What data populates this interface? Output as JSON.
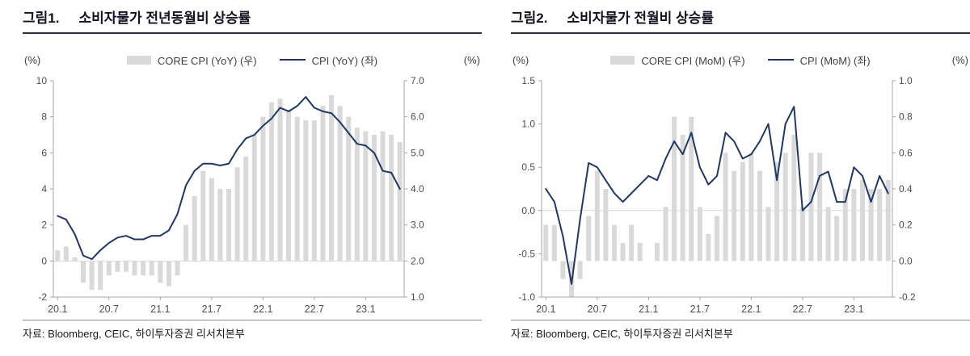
{
  "chart_data": [
    {
      "type": "bar+line combo",
      "figure_label": "그림1.",
      "title": "소비자물가 전년동월비 상승률",
      "source": "자료: Bloomberg, CEIC, 하이투자증권 리서치본부",
      "legend": [
        {
          "series": "bar",
          "label": "CORE CPI (YoY) (우)"
        },
        {
          "series": "line",
          "label": "CPI (YoY) (좌)"
        }
      ],
      "axis_left": {
        "unit": "(%)",
        "min": -2,
        "max": 10,
        "ticks": [
          -2,
          0,
          2,
          4,
          6,
          8,
          10
        ],
        "tick_labels": [
          "-2",
          "0",
          "2",
          "4",
          "6",
          "8",
          "10"
        ]
      },
      "axis_right": {
        "unit": "(%)",
        "min": 1.0,
        "max": 7.0,
        "tick_labels": [
          "1.0",
          "2.0",
          "3.0",
          "4.0",
          "5.0",
          "6.0",
          "7.0"
        ]
      },
      "x_tick_labels": [
        "20.1",
        "20.7",
        "21.1",
        "21.7",
        "22.1",
        "22.7",
        "23.1"
      ],
      "x_tick_every": 6,
      "x_categories": [
        "20.1",
        "20.2",
        "20.3",
        "20.4",
        "20.5",
        "20.6",
        "20.7",
        "20.8",
        "20.9",
        "20.10",
        "20.11",
        "20.12",
        "21.1",
        "21.2",
        "21.3",
        "21.4",
        "21.5",
        "21.6",
        "21.7",
        "21.8",
        "21.9",
        "21.10",
        "21.11",
        "21.12",
        "22.1",
        "22.2",
        "22.3",
        "22.4",
        "22.5",
        "22.6",
        "22.7",
        "22.8",
        "22.9",
        "22.10",
        "22.11",
        "22.12",
        "23.1",
        "23.2",
        "23.3",
        "23.4",
        "23.5"
      ],
      "bar_series": {
        "name": "CORE CPI (YoY)",
        "axis": "right",
        "baseline": 2.0,
        "values": [
          2.3,
          2.4,
          2.1,
          1.4,
          1.2,
          1.2,
          1.6,
          1.7,
          1.7,
          1.6,
          1.6,
          1.6,
          1.4,
          1.3,
          1.6,
          3.0,
          3.8,
          4.5,
          4.3,
          4.0,
          4.0,
          4.6,
          4.9,
          5.5,
          6.0,
          6.4,
          6.5,
          6.2,
          6.0,
          5.9,
          5.9,
          6.3,
          6.6,
          6.3,
          6.0,
          5.7,
          5.6,
          5.5,
          5.6,
          5.5,
          5.3
        ]
      },
      "line_series": {
        "name": "CPI (YoY)",
        "axis": "left",
        "values": [
          2.5,
          2.3,
          1.5,
          0.3,
          0.1,
          0.6,
          1.0,
          1.3,
          1.4,
          1.2,
          1.2,
          1.4,
          1.4,
          1.7,
          2.6,
          4.2,
          5.0,
          5.4,
          5.4,
          5.3,
          5.4,
          6.2,
          6.8,
          7.0,
          7.5,
          7.9,
          8.5,
          8.3,
          8.6,
          9.1,
          8.5,
          8.3,
          8.2,
          7.7,
          7.1,
          6.5,
          6.4,
          6.0,
          5.0,
          4.9,
          4.0
        ]
      },
      "zero_line_left": 0,
      "grid": "zero line only",
      "legend_position": "top center",
      "colors": {
        "bar": "#d9d9d9",
        "line": "#1f3864"
      }
    },
    {
      "type": "bar+line combo",
      "figure_label": "그림2.",
      "title": "소비자물가 전월비 상승률",
      "source": "자료: Bloomberg, CEIC, 하이투자증권 리서치본부",
      "legend": [
        {
          "series": "bar",
          "label": "CORE CPI (MoM) (우)"
        },
        {
          "series": "line",
          "label": "CPI (MoM) (좌)"
        }
      ],
      "axis_left": {
        "unit": "(%)",
        "min": -1.0,
        "max": 1.5,
        "ticks": [
          -1.0,
          -0.5,
          0.0,
          0.5,
          1.0,
          1.5
        ],
        "tick_labels": [
          "-1.0",
          "-0.5",
          "0.0",
          "0.5",
          "1.0",
          "1.5"
        ]
      },
      "axis_right": {
        "unit": "(%)",
        "min": -0.2,
        "max": 1.0,
        "tick_labels": [
          "-0.2",
          "0.0",
          "0.2",
          "0.4",
          "0.6",
          "0.8",
          "1.0"
        ]
      },
      "x_tick_labels": [
        "20.1",
        "20.7",
        "21.1",
        "21.7",
        "22.1",
        "22.7",
        "23.1"
      ],
      "x_tick_every": 6,
      "x_categories": [
        "20.1",
        "20.2",
        "20.3",
        "20.4",
        "20.5",
        "20.6",
        "20.7",
        "20.8",
        "20.9",
        "20.10",
        "20.11",
        "20.12",
        "21.1",
        "21.2",
        "21.3",
        "21.4",
        "21.5",
        "21.6",
        "21.7",
        "21.8",
        "21.9",
        "21.10",
        "21.11",
        "21.12",
        "22.1",
        "22.2",
        "22.3",
        "22.4",
        "22.5",
        "22.6",
        "22.7",
        "22.8",
        "22.9",
        "22.10",
        "22.11",
        "22.12",
        "23.1",
        "23.2",
        "23.3",
        "23.4",
        "23.5"
      ],
      "bar_series": {
        "name": "CORE CPI (MoM)",
        "axis": "right",
        "baseline": 0.0,
        "values": [
          0.2,
          0.2,
          -0.1,
          -0.4,
          -0.1,
          0.25,
          0.5,
          0.4,
          0.2,
          0.1,
          0.2,
          0.1,
          0.0,
          0.1,
          0.3,
          0.8,
          0.7,
          0.8,
          0.3,
          0.15,
          0.25,
          0.6,
          0.5,
          0.55,
          0.6,
          0.5,
          0.3,
          0.55,
          0.6,
          0.7,
          0.3,
          0.6,
          0.6,
          0.3,
          0.25,
          0.4,
          0.4,
          0.45,
          0.4,
          0.4,
          0.45
        ]
      },
      "line_series": {
        "name": "CPI (MoM)",
        "axis": "left",
        "values": [
          0.25,
          0.1,
          -0.3,
          -0.85,
          -0.1,
          0.55,
          0.5,
          0.35,
          0.2,
          0.1,
          0.2,
          0.3,
          0.4,
          0.35,
          0.6,
          0.8,
          0.65,
          0.9,
          0.5,
          0.3,
          0.4,
          0.9,
          0.8,
          0.6,
          0.65,
          0.8,
          1.0,
          0.35,
          1.0,
          1.2,
          0.0,
          0.1,
          0.4,
          0.45,
          0.1,
          0.1,
          0.5,
          0.4,
          0.1,
          0.4,
          0.2
        ]
      },
      "zero_line_left": 0,
      "grid": "zero line only",
      "legend_position": "top center",
      "colors": {
        "bar": "#d9d9d9",
        "line": "#1f3864"
      }
    }
  ]
}
